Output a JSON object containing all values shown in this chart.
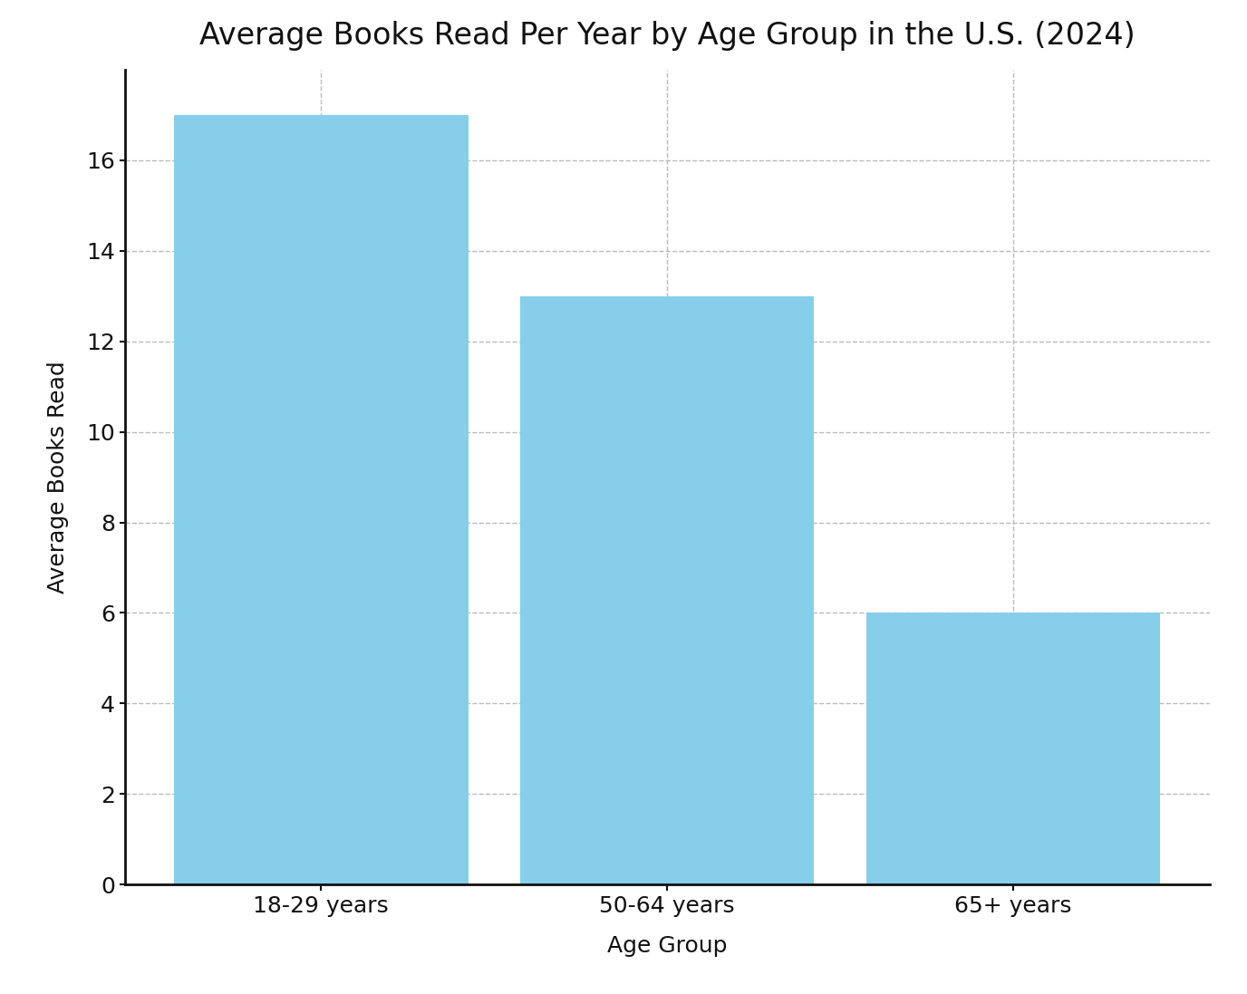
{
  "title": "Average Books Read Per Year by Age Group in the U.S. (2024)",
  "xlabel": "Age Group",
  "ylabel": "Average Books Read",
  "categories": [
    "18-29 years",
    "50-64 years",
    "65+ years"
  ],
  "values": [
    17,
    13,
    6
  ],
  "bar_color": "#87CEEB",
  "ylim": [
    0,
    18
  ],
  "yticks": [
    0,
    2,
    4,
    6,
    8,
    10,
    12,
    14,
    16
  ],
  "title_fontsize": 24,
  "label_fontsize": 18,
  "tick_fontsize": 18,
  "bar_width": 0.85,
  "grid_color": "#bbbbbb",
  "grid_style": "--",
  "background_color": "#ffffff"
}
